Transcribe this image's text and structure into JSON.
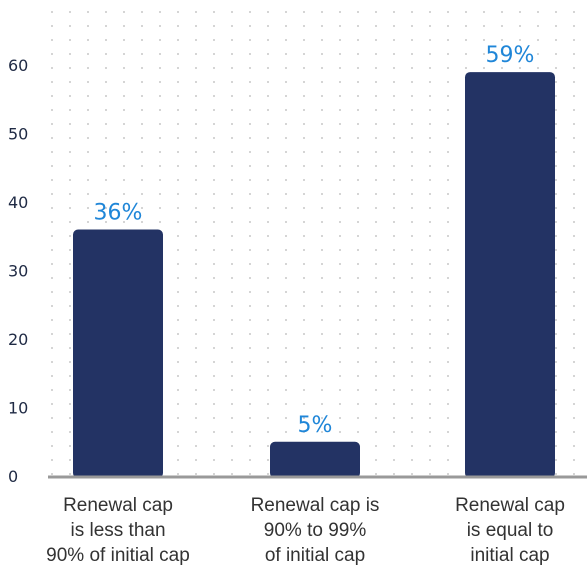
{
  "chart_data": {
    "type": "bar",
    "categories": [
      [
        "Renewal cap",
        "is less than",
        "90% of initial cap"
      ],
      [
        "Renewal cap is",
        "90% to 99%",
        "of initial cap"
      ],
      [
        "Renewal cap",
        "is equal to",
        "initial cap"
      ]
    ],
    "values": [
      36,
      5,
      59
    ],
    "data_labels": [
      "36%",
      "5%",
      "59%"
    ],
    "yticks": [
      0,
      10,
      20,
      30,
      40,
      50,
      60
    ],
    "ytick_labels": [
      "0",
      "10",
      "20",
      "30",
      "40",
      "50",
      "60"
    ],
    "ylim": [
      0,
      65
    ],
    "grid": "dotted",
    "colors": {
      "bar": "#233364",
      "data_label": "#1f86d8",
      "axis": "#999999",
      "grid_dot": "#c8c8c8"
    }
  }
}
